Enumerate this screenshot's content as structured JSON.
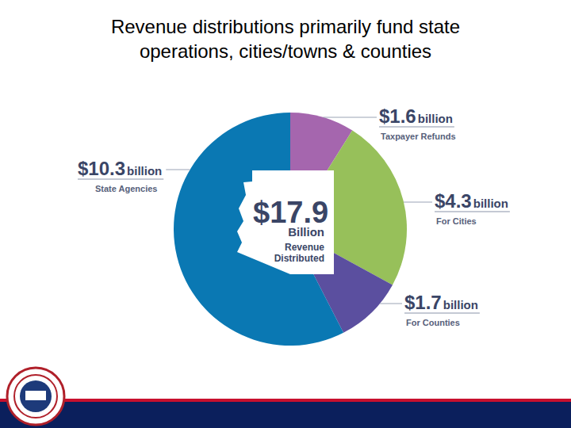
{
  "chart_data": {
    "type": "pie",
    "title": "Revenue distributions primarily fund state operations, cities/towns & counties",
    "categories": [
      "Taxpayer Refunds",
      "For Cities",
      "For Counties",
      "State Agencies"
    ],
    "values": [
      1.6,
      4.3,
      1.7,
      10.3
    ],
    "value_labels": [
      "$1.6 billion",
      "$4.3 billion",
      "$1.7 billion",
      "$10.3 billion"
    ],
    "colors": [
      "#a566ae",
      "#97c05a",
      "#5b4f9f",
      "#0a78b3"
    ],
    "data_labels": true,
    "center_value": 17.9,
    "center_value_label": "$17.9",
    "center_text": [
      "Billion",
      "Revenue",
      "Distributed"
    ]
  }
}
